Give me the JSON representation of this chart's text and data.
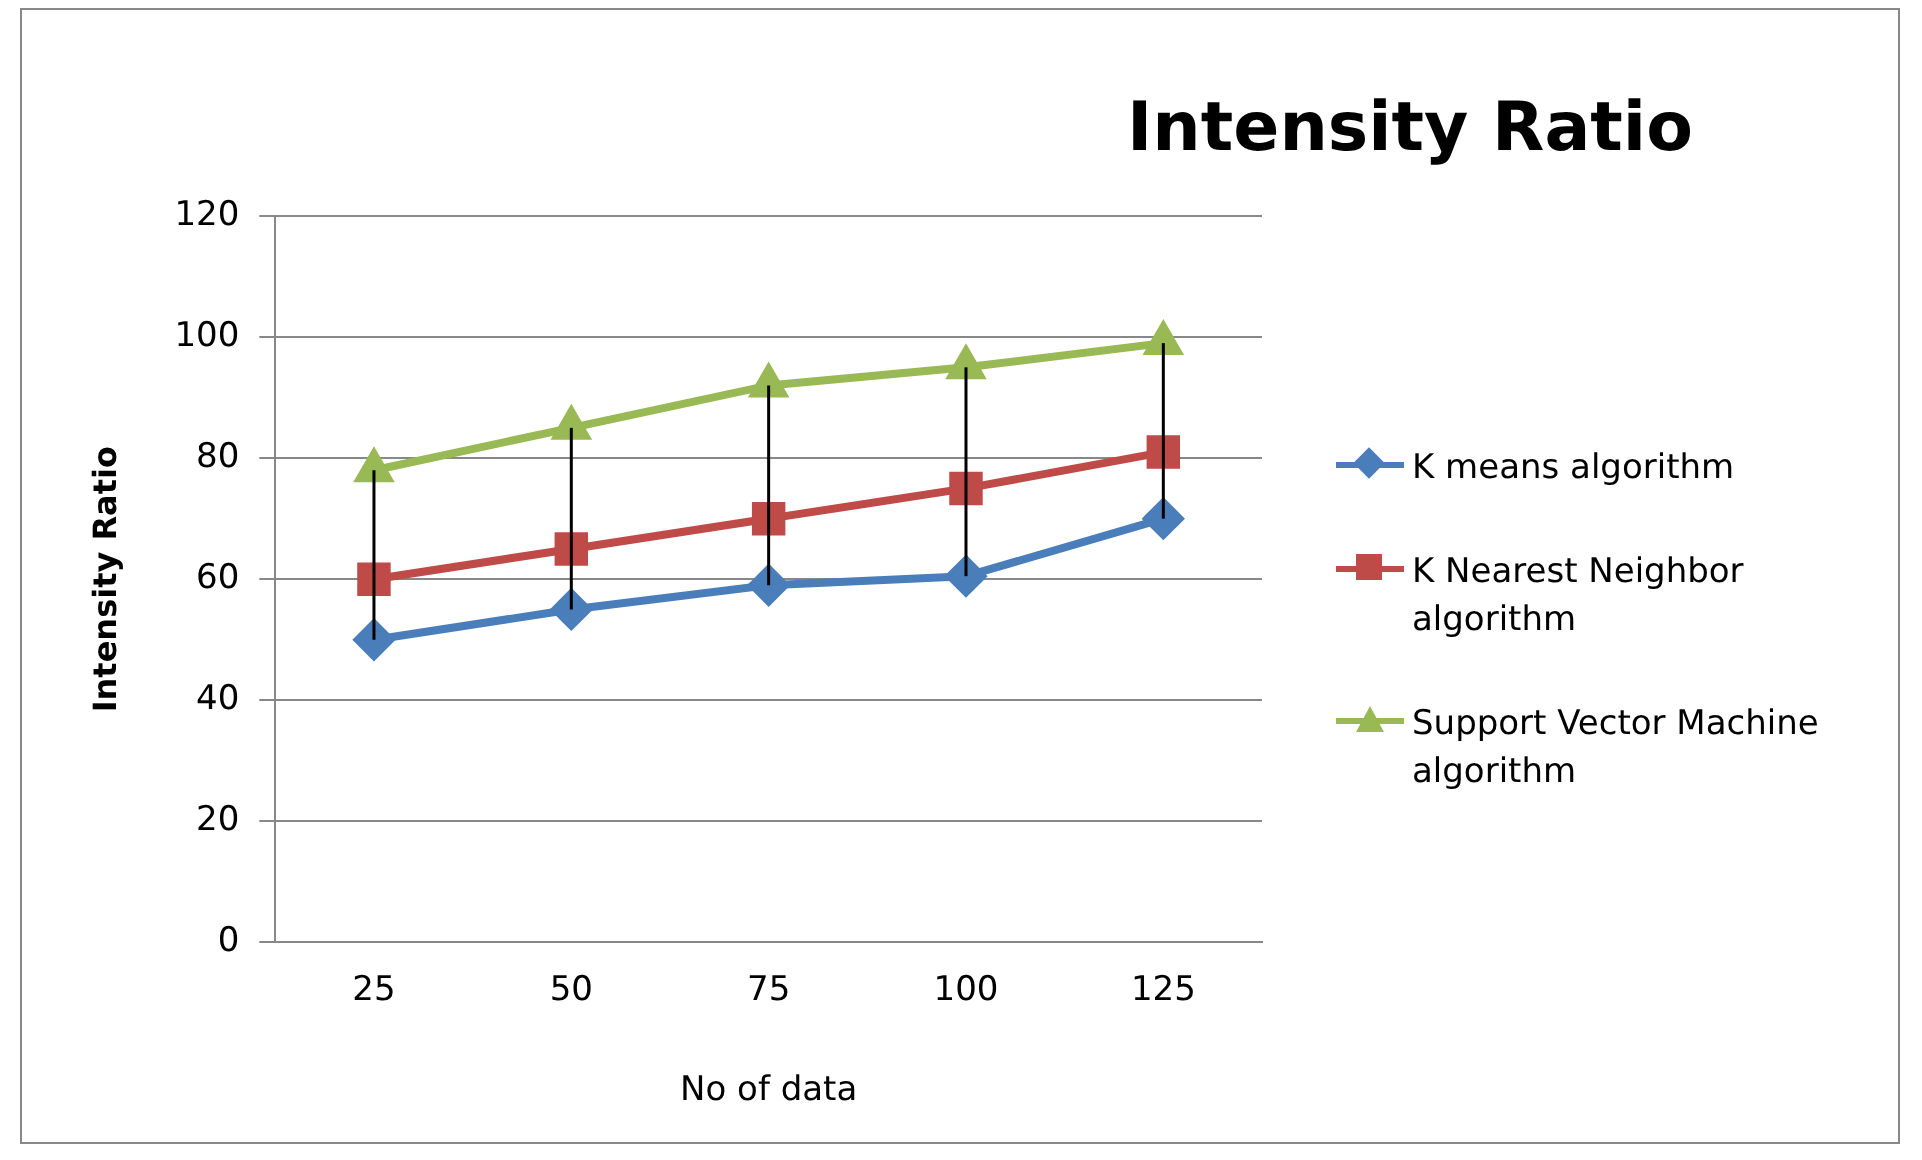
{
  "chart_data": {
    "type": "line",
    "title": "Intensity Ratio",
    "xlabel": "No of data",
    "ylabel": "Intensity Ratio",
    "categories": [
      "25",
      "50",
      "75",
      "100",
      "125"
    ],
    "series": [
      {
        "name": "K means algorithm",
        "color": "#4a7ebb",
        "marker": "diamond",
        "values": [
          50,
          55,
          59,
          60.5,
          70
        ],
        "errors": [
          [
            50,
            78
          ],
          [
            55,
            85
          ],
          [
            59,
            92
          ],
          [
            60.5,
            95
          ],
          [
            70,
            99
          ]
        ]
      },
      {
        "name": "K Nearest Neighbor algorithm",
        "color": "#be4b48",
        "marker": "square",
        "values": [
          60,
          65,
          70,
          75,
          81
        ]
      },
      {
        "name": "Support Vector Machine algorithm",
        "color": "#98b954",
        "marker": "triangle",
        "values": [
          78,
          85,
          92,
          95,
          99
        ]
      }
    ],
    "ylim": [
      0,
      120
    ],
    "yticks": [
      0,
      20,
      40,
      60,
      80,
      100,
      120
    ],
    "grid": "y",
    "legend": "right"
  }
}
